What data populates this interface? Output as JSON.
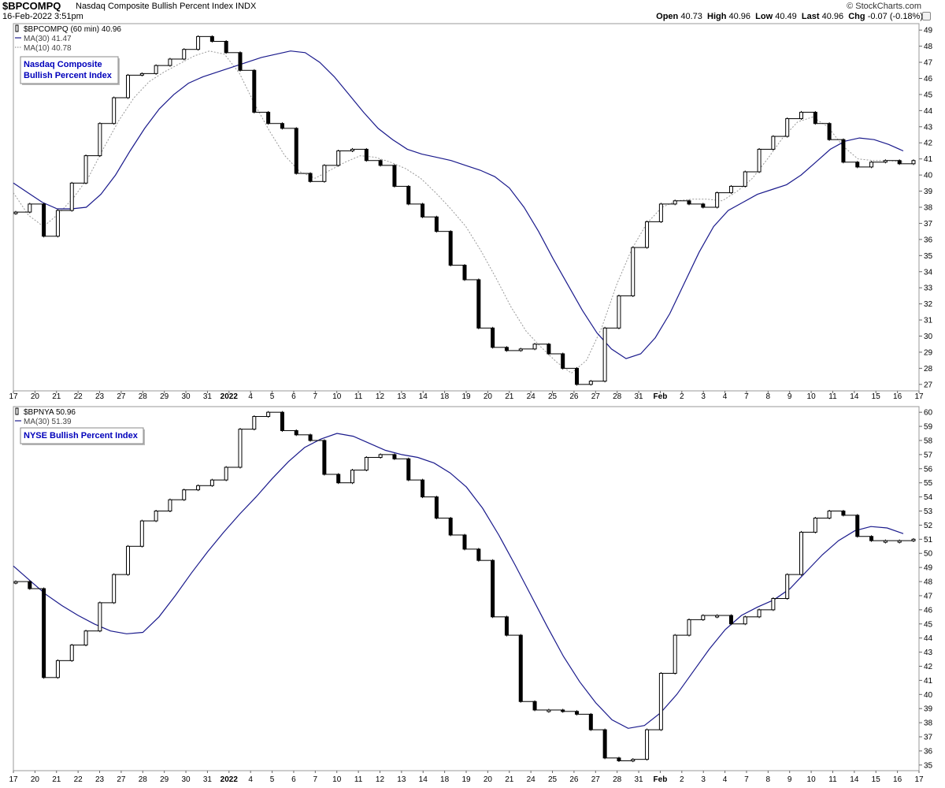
{
  "header": {
    "symbol": "$BPCOMPQ",
    "description": "Nasdaq Composite Bullish Percent Index",
    "exchange": "INDX",
    "timestamp": "16-Feb-2022 3:51pm",
    "copyright": "© StockCharts.com",
    "quote": {
      "open_label": "Open",
      "open": "40.73",
      "high_label": "High",
      "high": "40.96",
      "low_label": "Low",
      "low": "40.49",
      "last_label": "Last",
      "last": "40.96",
      "chg_label": "Chg",
      "chg": "-0.07 (-0.18%)"
    }
  },
  "colors": {
    "price": "#000000",
    "ma30": "#1a1a8c",
    "ma10": "#999999",
    "label_text": "#0000bb",
    "grid": "#eeeeee",
    "down_candle": "#000000"
  },
  "x_axis_labels": [
    "17",
    "20",
    "21",
    "22",
    "23",
    "27",
    "28",
    "29",
    "30",
    "31",
    "2022",
    "4",
    "5",
    "6",
    "7",
    "10",
    "11",
    "12",
    "13",
    "14",
    "18",
    "19",
    "20",
    "21",
    "24",
    "25",
    "26",
    "27",
    "28",
    "31",
    "Feb",
    "2",
    "3",
    "4",
    "7",
    "8",
    "9",
    "10",
    "11",
    "14",
    "15",
    "16",
    "17"
  ],
  "chart_data": [
    {
      "type": "line",
      "panel": "top",
      "legend": [
        {
          "text": "$BPCOMPQ (60 min) 40.96",
          "icon": "candle-icon"
        },
        {
          "text": "MA(30) 41.47",
          "style": "solid"
        },
        {
          "text": "MA(10) 40.78",
          "style": "dotted"
        }
      ],
      "annotation": [
        "Nasdaq Composite",
        "Bullish Percent Index"
      ],
      "y_ticks": [
        27,
        28,
        29,
        30,
        31,
        32,
        33,
        34,
        35,
        36,
        37,
        38,
        39,
        40,
        41,
        42,
        43,
        44,
        45,
        46,
        47,
        48,
        49
      ],
      "ylim": [
        26.6,
        49.4
      ],
      "series": [
        {
          "role": "price",
          "values": [
            37.7,
            38.2,
            36.2,
            37.8,
            39.5,
            41.2,
            43.2,
            44.8,
            46.2,
            46.3,
            46.8,
            47.2,
            47.8,
            48.6,
            48.3,
            47.6,
            46.5,
            43.9,
            43.2,
            42.9,
            40.1,
            39.6,
            40.6,
            41.5,
            41.6,
            40.9,
            40.6,
            39.3,
            38.2,
            37.4,
            36.5,
            34.4,
            33.5,
            30.5,
            29.3,
            29.1,
            29.2,
            29.5,
            28.9,
            28.0,
            27.0,
            27.2,
            30.5,
            32.5,
            35.5,
            37.1,
            38.2,
            38.4,
            38.2,
            38.0,
            38.9,
            39.3,
            40.2,
            41.6,
            42.4,
            43.5,
            43.9,
            43.2,
            42.2,
            40.8,
            40.5,
            40.8,
            40.9,
            40.7,
            40.9
          ]
        },
        {
          "role": "ma30",
          "values": [
            39.5,
            38.9,
            38.3,
            37.9,
            37.9,
            38.0,
            38.8,
            40.0,
            41.5,
            42.9,
            44.1,
            45.0,
            45.7,
            46.1,
            46.4,
            46.7,
            47.0,
            47.3,
            47.5,
            47.7,
            47.6,
            47.0,
            46.1,
            45.0,
            43.9,
            42.9,
            42.2,
            41.6,
            41.3,
            41.1,
            40.9,
            40.6,
            40.3,
            39.9,
            39.2,
            38.0,
            36.5,
            34.8,
            33.2,
            31.6,
            30.2,
            29.2,
            28.6,
            28.9,
            29.9,
            31.4,
            33.3,
            35.2,
            36.8,
            37.8,
            38.3,
            38.8,
            39.1,
            39.4,
            40.0,
            40.8,
            41.6,
            42.1,
            42.3,
            42.2,
            41.9,
            41.5
          ]
        },
        {
          "role": "ma10",
          "values": [
            38.9,
            37.5,
            36.8,
            37.6,
            38.6,
            39.9,
            41.7,
            43.4,
            44.8,
            45.8,
            46.4,
            46.9,
            47.4,
            47.7,
            47.5,
            46.3,
            44.4,
            42.7,
            41.2,
            40.2,
            39.8,
            40.3,
            40.8,
            41.2,
            41.1,
            40.8,
            40.4,
            39.8,
            38.9,
            37.9,
            36.8,
            35.3,
            33.6,
            31.8,
            30.3,
            29.3,
            28.4,
            27.7,
            28.5,
            30.5,
            33.2,
            35.4,
            37.0,
            38.0,
            38.4,
            38.5,
            38.5,
            38.4,
            39.0,
            39.8,
            41.0,
            42.3,
            43.3,
            43.6,
            43.0,
            41.8,
            41.0,
            40.9,
            40.9,
            40.8
          ]
        }
      ]
    },
    {
      "type": "line",
      "panel": "bottom",
      "legend": [
        {
          "text": "$BPNYA 50.96",
          "icon": "candle-icon"
        },
        {
          "text": "MA(30) 51.39",
          "style": "solid"
        }
      ],
      "annotation": [
        "NYSE Bullish Percent Index"
      ],
      "y_ticks": [
        35,
        36,
        37,
        38,
        39,
        40,
        41,
        42,
        43,
        44,
        45,
        46,
        47,
        48,
        49,
        50,
        51,
        52,
        53,
        54,
        55,
        56,
        57,
        58,
        59,
        60
      ],
      "ylim": [
        34.6,
        60.4
      ],
      "series": [
        {
          "role": "price",
          "values": [
            48.0,
            47.5,
            41.2,
            42.4,
            43.5,
            44.5,
            46.5,
            48.5,
            50.5,
            52.3,
            53.0,
            53.8,
            54.5,
            54.8,
            55.2,
            56.1,
            58.8,
            59.7,
            60.0,
            58.7,
            58.4,
            58.0,
            55.6,
            55.0,
            55.9,
            56.8,
            57.0,
            56.7,
            55.2,
            54.0,
            52.5,
            51.3,
            50.3,
            49.5,
            45.5,
            44.2,
            39.5,
            38.9,
            38.9,
            38.8,
            38.6,
            37.5,
            35.5,
            35.3,
            35.4,
            37.5,
            41.5,
            44.2,
            45.3,
            45.6,
            45.6,
            45.0,
            45.5,
            46.0,
            46.8,
            48.5,
            51.5,
            52.5,
            53.0,
            52.7,
            51.2,
            50.9,
            50.9,
            50.9,
            51.0
          ]
        },
        {
          "role": "ma30",
          "values": [
            49.1,
            48.1,
            47.1,
            46.3,
            45.6,
            45.0,
            44.5,
            44.3,
            44.4,
            45.5,
            47.0,
            48.6,
            50.1,
            51.5,
            52.8,
            54.0,
            55.3,
            56.5,
            57.5,
            58.1,
            58.5,
            58.3,
            57.8,
            57.3,
            57.0,
            56.8,
            56.4,
            55.7,
            54.7,
            53.2,
            51.3,
            49.2,
            47.0,
            44.8,
            42.7,
            40.9,
            39.4,
            38.2,
            37.6,
            37.8,
            38.7,
            40.0,
            41.6,
            43.2,
            44.6,
            45.6,
            46.2,
            46.7,
            47.5,
            48.7,
            49.9,
            50.9,
            51.6,
            51.9,
            51.8,
            51.4
          ]
        }
      ]
    }
  ]
}
